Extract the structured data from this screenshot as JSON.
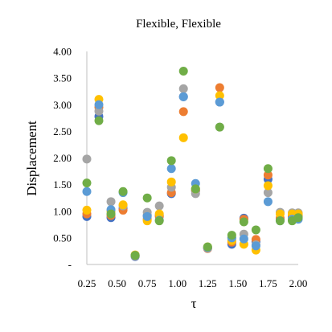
{
  "chart_data": {
    "type": "scatter",
    "title": "Flexible,  Flexible",
    "xlabel": "τ",
    "ylabel": "Displacement",
    "xlim": [
      0.25,
      2.0
    ],
    "ylim": [
      0,
      4.0
    ],
    "x_ticks": [
      0.25,
      0.5,
      0.75,
      1.0,
      1.25,
      1.5,
      1.75,
      2.0
    ],
    "x_tick_labels": [
      "0.25",
      "0.50",
      "0.75",
      "1.00",
      "1.25",
      "1.50",
      "1.75",
      "2.00"
    ],
    "y_ticks": [
      0,
      0.5,
      1.0,
      1.5,
      2.0,
      2.5,
      3.0,
      3.5,
      4.0
    ],
    "y_tick_labels": [
      "-",
      "0.50",
      "1.00",
      "1.50",
      "2.00",
      "2.50",
      "3.00",
      "3.50",
      "4.00"
    ],
    "grid": false,
    "legend": "none",
    "x": [
      0.25,
      0.35,
      0.45,
      0.55,
      0.65,
      0.75,
      0.85,
      0.95,
      1.05,
      1.15,
      1.25,
      1.35,
      1.45,
      1.55,
      1.65,
      1.75,
      1.85,
      1.95,
      2.0
    ],
    "series": [
      {
        "color": "#4472c4",
        "values": [
          0.9,
          2.78,
          0.88,
          1.05,
          0.15,
          0.92,
          0.92,
          1.33,
          3.15,
          1.38,
          0.3,
          3.05,
          0.38,
          0.87,
          0.43,
          1.6,
          0.83,
          0.9,
          0.9
        ]
      },
      {
        "color": "#ed7d31",
        "values": [
          0.95,
          2.95,
          0.92,
          1.02,
          0.16,
          0.85,
          0.9,
          1.35,
          2.87,
          1.4,
          0.3,
          3.32,
          0.42,
          0.85,
          0.47,
          1.68,
          0.87,
          0.92,
          0.92
        ]
      },
      {
        "color": "#a5a5a5",
        "values": [
          1.98,
          2.88,
          1.18,
          1.1,
          0.16,
          0.98,
          1.1,
          1.45,
          3.3,
          1.33,
          0.31,
          2.58,
          0.5,
          0.57,
          0.37,
          1.35,
          0.98,
          0.97,
          0.97
        ]
      },
      {
        "color": "#ffc000",
        "values": [
          1.02,
          3.1,
          1.0,
          1.12,
          0.18,
          0.82,
          0.95,
          1.55,
          2.38,
          1.42,
          0.33,
          3.17,
          0.45,
          0.38,
          0.27,
          1.48,
          0.95,
          0.95,
          0.95
        ]
      },
      {
        "color": "#5b9bd5",
        "values": [
          1.37,
          3.0,
          1.03,
          1.35,
          0.17,
          0.9,
          0.83,
          1.8,
          3.15,
          1.52,
          0.32,
          3.05,
          0.5,
          0.48,
          0.35,
          1.18,
          0.82,
          0.85,
          0.85
        ]
      },
      {
        "color": "#70ad47",
        "values": [
          1.53,
          2.7,
          0.95,
          1.37,
          0.17,
          1.25,
          0.82,
          1.95,
          3.63,
          1.42,
          0.33,
          2.58,
          0.55,
          0.8,
          0.65,
          1.8,
          0.82,
          0.82,
          0.88
        ]
      }
    ]
  }
}
